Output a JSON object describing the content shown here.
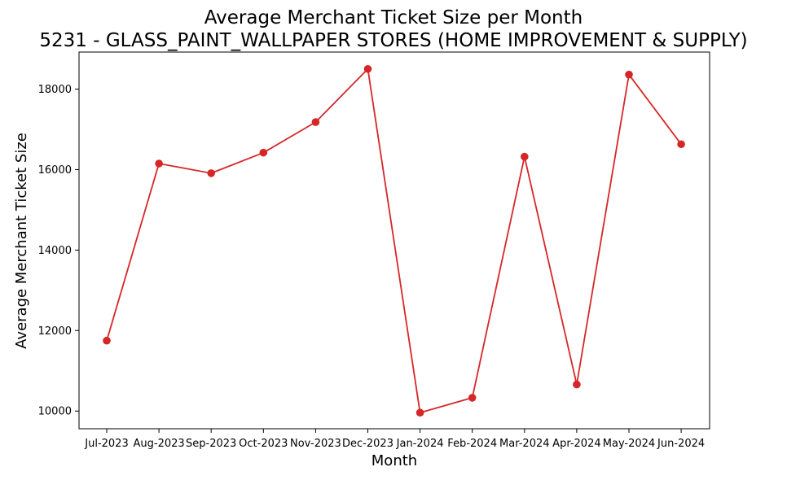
{
  "chart_data": {
    "type": "line",
    "title": "Average Merchant Ticket Size per Month",
    "subtitle": "5231 - GLASS_PAINT_WALLPAPER STORES (HOME IMPROVEMENT & SUPPLY)",
    "xlabel": "Month",
    "ylabel": "Average Merchant Ticket Size",
    "categories": [
      "Jul-2023",
      "Aug-2023",
      "Sep-2023",
      "Oct-2023",
      "Nov-2023",
      "Dec-2023",
      "Jan-2024",
      "Feb-2024",
      "Mar-2024",
      "Apr-2024",
      "May-2024",
      "Jun-2024"
    ],
    "values": [
      11750,
      16150,
      15910,
      16420,
      17180,
      18500,
      9960,
      10330,
      16320,
      10660,
      18360,
      16630
    ],
    "yticks": [
      10000,
      12000,
      14000,
      16000,
      18000
    ],
    "ylim": [
      9560,
      18920
    ],
    "grid": false,
    "color": "#d62728",
    "marker": "circle"
  }
}
